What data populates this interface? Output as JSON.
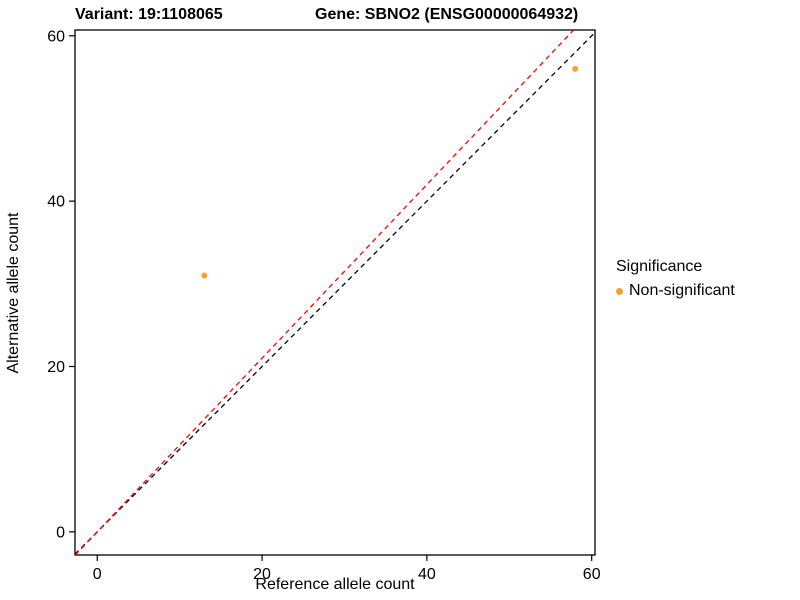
{
  "chart_data": {
    "type": "scatter",
    "title_variant": "Variant: 19:1108065",
    "title_gene": "Gene: SBNO2 (ENSG00000064932)",
    "xlabel": "Reference allele count",
    "ylabel": "Alternative allele count",
    "xlim": [
      -2.7,
      60.4
    ],
    "ylim": [
      -2.8,
      60.7
    ],
    "xticks": [
      0,
      20,
      40,
      60
    ],
    "yticks": [
      0,
      20,
      40,
      60
    ],
    "grid": false,
    "panel_border_color": "#000000",
    "background_color": "#FFFFFF",
    "point_color": "#F9A02B",
    "point_radius": 3,
    "points": [
      {
        "x": 13,
        "y": 31,
        "series": "Non-significant"
      },
      {
        "x": 58,
        "y": 56,
        "series": "Non-significant"
      }
    ],
    "lines": [
      {
        "name": "identity-line",
        "slope": 1,
        "intercept": 0,
        "color": "#000000",
        "dashed": true
      },
      {
        "name": "fit-line",
        "slope": 1.05,
        "intercept": 0,
        "color": "#FF0000",
        "dashed": true
      }
    ],
    "legend": {
      "title": "Significance",
      "position": "right",
      "items": [
        {
          "label": "Non-significant",
          "color": "#F9A02B",
          "marker": "dot"
        }
      ]
    }
  }
}
